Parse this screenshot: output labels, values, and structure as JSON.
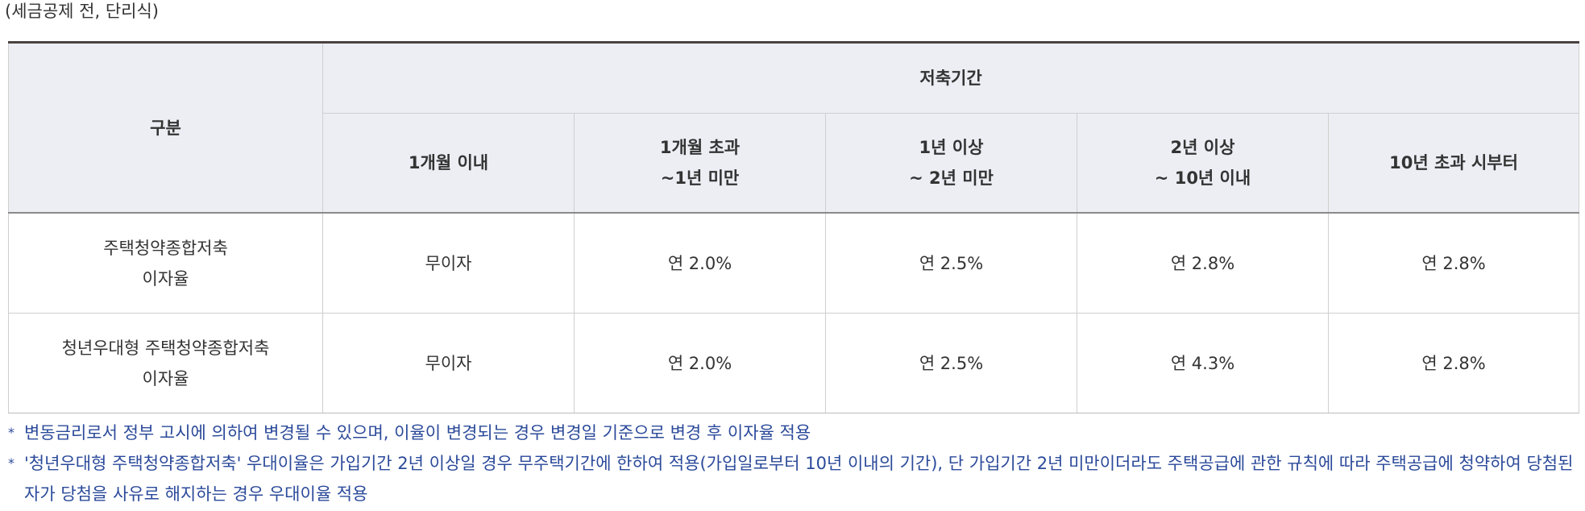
{
  "caption": "(세금공제 전, 단리식)",
  "table": {
    "header": {
      "category": "구분",
      "period_group": "저축기간",
      "periods": [
        {
          "line1": "1개월 이내",
          "line2": ""
        },
        {
          "line1": "1개월 초과",
          "line2": "~1년 미만"
        },
        {
          "line1": "1년 이상",
          "line2": "~ 2년 미만"
        },
        {
          "line1": "2년 이상",
          "line2": "~ 10년 이내"
        },
        {
          "line1": "10년 초과 시부터",
          "line2": ""
        }
      ]
    },
    "rows": [
      {
        "label_line1": "주택청약종합저축",
        "label_line2": "이자율",
        "values": [
          "무이자",
          "연 2.0%",
          "연 2.5%",
          "연 2.8%",
          "연 2.8%"
        ]
      },
      {
        "label_line1": "청년우대형 주택청약종합저축",
        "label_line2": "이자율",
        "values": [
          "무이자",
          "연 2.0%",
          "연 2.5%",
          "연 4.3%",
          "연 2.8%"
        ]
      }
    ]
  },
  "notes": [
    "변동금리로서 정부 고시에 의하여 변경될 수 있으며, 이율이 변경되는 경우 변경일 기준으로 변경 후 이자율 적용",
    "'청년우대형 주택청약종합저축' 우대이율은 가입기간 2년 이상일 경우 무주택기간에 한하여 적용(가입일로부터 10년 이내의 기간), 단 가입기간 2년 미만이더라도 주택공급에 관한 규칙에 따라 주택공급에 청약하여 당첨된 자가 당첨을 사유로 해지하는 경우 우대이율 적용"
  ],
  "note_marker": "*",
  "colors": {
    "header_bg": "#eceef4",
    "note_text": "#2b4a9a",
    "top_rule": "#4a4240"
  }
}
